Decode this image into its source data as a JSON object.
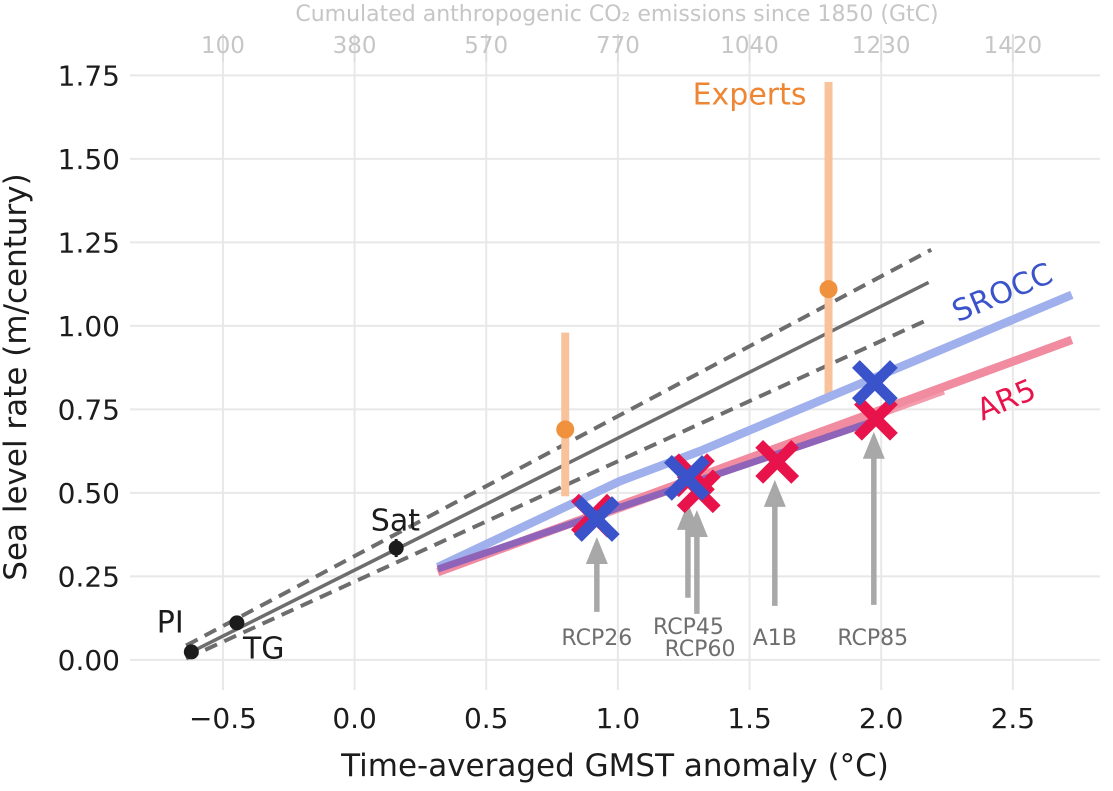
{
  "chart_data": {
    "type": "scatter",
    "top_axis": {
      "title": "Cumulated anthropogenic CO₂ emissions since 1850 (GtC)",
      "ticks": [
        {
          "x": -0.5,
          "label": "100"
        },
        {
          "x": 0.0,
          "label": "380"
        },
        {
          "x": 0.5,
          "label": "570"
        },
        {
          "x": 1.0,
          "label": "770"
        },
        {
          "x": 1.5,
          "label": "1040"
        },
        {
          "x": 2.0,
          "label": "1230"
        },
        {
          "x": 2.5,
          "label": "1420"
        }
      ]
    },
    "xlabel": "Time-averaged GMST anomaly (°C)",
    "ylabel": "Sea level rate (m/century)",
    "xlim": [
      -0.853,
      2.831
    ],
    "ylim": [
      -0.09,
      1.79
    ],
    "grid": true,
    "x_ticks": [
      {
        "v": -0.5,
        "label": "−0.5"
      },
      {
        "v": 0.0,
        "label": "0.0"
      },
      {
        "v": 0.5,
        "label": "0.5"
      },
      {
        "v": 1.0,
        "label": "1.0"
      },
      {
        "v": 1.5,
        "label": "1.5"
      },
      {
        "v": 2.0,
        "label": "2.0"
      },
      {
        "v": 2.5,
        "label": "2.5"
      }
    ],
    "y_ticks": [
      {
        "v": 0.0,
        "label": "0.00"
      },
      {
        "v": 0.25,
        "label": "0.25"
      },
      {
        "v": 0.5,
        "label": "0.50"
      },
      {
        "v": 0.75,
        "label": "0.75"
      },
      {
        "v": 1.0,
        "label": "1.00"
      },
      {
        "v": 1.25,
        "label": "1.25"
      },
      {
        "v": 1.5,
        "label": "1.50"
      },
      {
        "v": 1.75,
        "label": "1.75"
      }
    ],
    "observations": {
      "points": [
        {
          "label": "PI",
          "x": -0.62,
          "y": 0.024,
          "yerr": 0.02,
          "label_x": -0.7,
          "label_y": 0.115
        },
        {
          "label": "TG",
          "x": -0.447,
          "y": 0.111,
          "yerr": 0.02,
          "label_x": -0.345,
          "label_y": 0.037
        },
        {
          "label": "Sat",
          "x": 0.158,
          "y": 0.335,
          "yerr": 0.027,
          "label_x": 0.155,
          "label_y": 0.42
        }
      ],
      "fit_line": [
        [
          -0.62,
          0.024
        ],
        [
          2.18,
          1.13
        ]
      ],
      "ci_upper": [
        [
          -0.64,
          0.043
        ],
        [
          2.19,
          1.228
        ]
      ],
      "ci_lower": [
        [
          -0.64,
          0.004
        ],
        [
          2.175,
          1.018
        ]
      ]
    },
    "experts": {
      "label": "Experts",
      "label_x": 1.5,
      "label_y": 1.692,
      "points": [
        {
          "x": 0.8,
          "y": 0.69,
          "lo": 0.49,
          "hi": 0.98
        },
        {
          "x": 1.8,
          "y": 1.11,
          "lo": 0.79,
          "hi": 1.73
        }
      ]
    },
    "srocc": {
      "label": "SROCC",
      "label_x": 2.475,
      "label_y": 1.102,
      "label_rotation": -23,
      "line": [
        [
          0.316,
          0.278
        ],
        [
          1.007,
          0.535
        ],
        [
          1.311,
          0.625
        ],
        [
          2.724,
          1.093
        ]
      ],
      "crosses": [
        {
          "scenario": "RCP26",
          "x": 0.92,
          "y": 0.422
        },
        {
          "scenario": "RCP45/RCP60",
          "x": 1.262,
          "y": 0.545
        },
        {
          "scenario": "RCP85",
          "x": 1.976,
          "y": 0.829
        }
      ]
    },
    "ar5": {
      "label": "AR5",
      "label_x": 2.49,
      "label_y": 0.781,
      "label_rotation": -23,
      "line": [
        [
          0.316,
          0.263
        ],
        [
          2.724,
          0.958
        ]
      ],
      "thin_line": [
        [
          0.93,
          0.425
        ],
        [
          2.24,
          0.8
        ]
      ],
      "crosses": [
        {
          "scenario": "RCP26",
          "x": 0.905,
          "y": 0.432
        },
        {
          "scenario": "RCP45",
          "x": 1.285,
          "y": 0.553
        },
        {
          "scenario": "RCP60",
          "x": 1.307,
          "y": 0.505
        },
        {
          "scenario": "A1B",
          "x": 1.605,
          "y": 0.593
        },
        {
          "scenario": "RCP85",
          "x": 1.98,
          "y": 0.722
        }
      ]
    },
    "overlap_line": [
      [
        0.316,
        0.272
      ],
      [
        1.985,
        0.718
      ]
    ],
    "scenario_arrows": [
      {
        "label": "RCP26",
        "x": 0.92,
        "tip_y": 0.368,
        "tail_y": 0.144,
        "label_x": 0.92,
        "label_y": 0.069
      },
      {
        "label": "RCP45",
        "x": 1.266,
        "tip_y": 0.47,
        "tail_y": 0.186,
        "label_x": 1.268,
        "label_y": 0.102
      },
      {
        "label": "RCP60",
        "x": 1.3,
        "tip_y": 0.449,
        "tail_y": 0.138,
        "label_x": 1.312,
        "label_y": 0.036
      },
      {
        "label": "A1B",
        "x": 1.596,
        "tip_y": 0.539,
        "tail_y": 0.162,
        "label_x": 1.596,
        "label_y": 0.069
      },
      {
        "label": "RCP85",
        "x": 1.972,
        "tip_y": 0.683,
        "tail_y": 0.165,
        "label_x": 1.968,
        "label_y": 0.069
      }
    ],
    "colors": {
      "background": "#ffffff",
      "grid": "#e8e8e8",
      "top_tick": "#dedede",
      "top_axis_text": "#c6c6c6",
      "tick_text": "#1c1c1c",
      "obs_point": "#1c1c1c",
      "obs_line": "#6d6d6d",
      "experts_bar": "#f8c29b",
      "experts_point": "#f0913e",
      "experts_text": "#ee8634",
      "srocc_line": "#9fb0ec",
      "srocc_cross": "#3a53cb",
      "ar5_line": "#f18ba0",
      "ar5_cross": "#e9134b",
      "overlap": "#8f64b8",
      "arrow": "#a8a8a8",
      "arrow_text": "#6e6e6e"
    }
  }
}
